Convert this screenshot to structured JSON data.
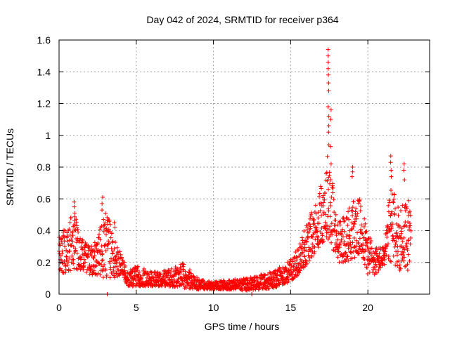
{
  "chart_data": {
    "type": "scatter",
    "title": "Day 042 of 2024, SRMTID for receiver p364",
    "xlabel": "GPS time / hours",
    "ylabel": "SRMTID / TECUs",
    "xlim": [
      0,
      24
    ],
    "ylim": [
      0,
      1.6
    ],
    "xticks": [
      0,
      5,
      10,
      15,
      20
    ],
    "yticks": [
      0,
      0.2,
      0.4,
      0.6,
      0.8,
      1,
      1.2,
      1.4,
      1.6
    ],
    "xtick_labels": [
      "0",
      "5",
      "10",
      "15",
      "20"
    ],
    "ytick_labels": [
      "0",
      "0.2",
      "0.4",
      "0.6",
      "0.8",
      "1",
      "1.2",
      "1.4",
      "1.6"
    ],
    "grid": true,
    "marker": "+",
    "color": "#ff0000",
    "x_data_extent": [
      0,
      22.8
    ],
    "profile": {
      "description": "approximate envelope of point cloud: hour, typical low, typical high",
      "hours": [
        0,
        0.5,
        1,
        1.5,
        2,
        2.5,
        3,
        3.5,
        4,
        4.5,
        5,
        6,
        7,
        8,
        9,
        10,
        11,
        12,
        13,
        14,
        15,
        15.5,
        16,
        16.5,
        17,
        17.5,
        18,
        18.5,
        19,
        19.5,
        20,
        20.5,
        21,
        21.5,
        22,
        22.5,
        22.8
      ],
      "low": [
        0.15,
        0.12,
        0.15,
        0.15,
        0.12,
        0.12,
        0.1,
        0.1,
        0.12,
        0.05,
        0.05,
        0.05,
        0.05,
        0.04,
        0.03,
        0.03,
        0.03,
        0.02,
        0.03,
        0.04,
        0.08,
        0.12,
        0.18,
        0.25,
        0.32,
        0.35,
        0.2,
        0.2,
        0.22,
        0.25,
        0.12,
        0.12,
        0.18,
        0.2,
        0.15,
        0.15,
        0.15
      ],
      "high": [
        0.38,
        0.45,
        0.55,
        0.35,
        0.3,
        0.35,
        0.55,
        0.4,
        0.25,
        0.15,
        0.18,
        0.14,
        0.15,
        0.2,
        0.1,
        0.08,
        0.09,
        0.1,
        0.12,
        0.15,
        0.22,
        0.3,
        0.45,
        0.55,
        0.7,
        0.95,
        0.45,
        0.5,
        0.6,
        0.6,
        0.4,
        0.3,
        0.3,
        0.7,
        0.55,
        0.65,
        0.55
      ]
    },
    "peaks": [
      {
        "x": 17.45,
        "values": [
          1.54,
          1.5,
          1.46,
          1.42,
          1.38,
          1.33,
          1.28,
          1.18,
          1.12,
          1.06,
          1.02,
          0.94
        ]
      },
      {
        "x": 17.6,
        "values": [
          1.16,
          1.1,
          0.93,
          0.82
        ]
      },
      {
        "x": 19.0,
        "values": [
          0.8,
          0.77,
          0.74
        ]
      },
      {
        "x": 21.5,
        "values": [
          0.87,
          0.83,
          0.78,
          0.74
        ]
      },
      {
        "x": 22.35,
        "values": [
          0.82,
          0.78,
          0.72
        ]
      },
      {
        "x": 2.8,
        "values": [
          0.61,
          0.57,
          0.53
        ]
      },
      {
        "x": 1.0,
        "values": [
          0.58,
          0.55,
          0.51
        ]
      },
      {
        "x": 3.6,
        "values": [
          0.45,
          0.42
        ]
      },
      {
        "x": 3.1,
        "values": [
          0.0
        ]
      },
      {
        "x": 12.5,
        "values": [
          0.0
        ]
      }
    ]
  }
}
